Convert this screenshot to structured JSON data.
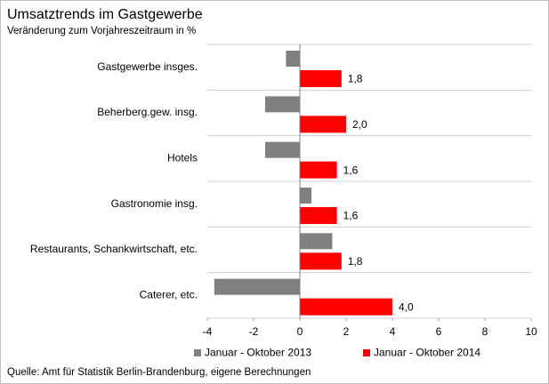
{
  "chart_data": {
    "type": "hbar",
    "title": "Umsatztrends  im Gastgewerbe",
    "subtitle": "Veränderung zum Vorjahreszeitraum  in %",
    "source": "Quelle: Amt für Statistik Berlin-Brandenburg, eigene Berechnungen",
    "categories": [
      "Gastgewerbe insges.",
      "Beherberg.gew. insg.",
      "Hotels",
      "Gastronomie insg.",
      "Restaurants, Schankwirtschaft, etc.",
      "Caterer, etc."
    ],
    "series": [
      {
        "name": "Januar - Oktober 2013",
        "color": "#808080",
        "values": [
          -0.6,
          -1.5,
          -1.5,
          0.5,
          1.4,
          -3.7
        ]
      },
      {
        "name": "Januar - Oktober 2014",
        "color": "#ff0000",
        "values": [
          1.8,
          2.0,
          1.6,
          1.6,
          1.8,
          4.0
        ],
        "value_labels": [
          "1,8",
          "2,0",
          "1,6",
          "1,6",
          "1,8",
          "4,0"
        ]
      }
    ],
    "xlim": [
      -4,
      10
    ],
    "xticks": [
      -4,
      -2,
      0,
      2,
      4,
      6,
      8,
      10
    ]
  }
}
